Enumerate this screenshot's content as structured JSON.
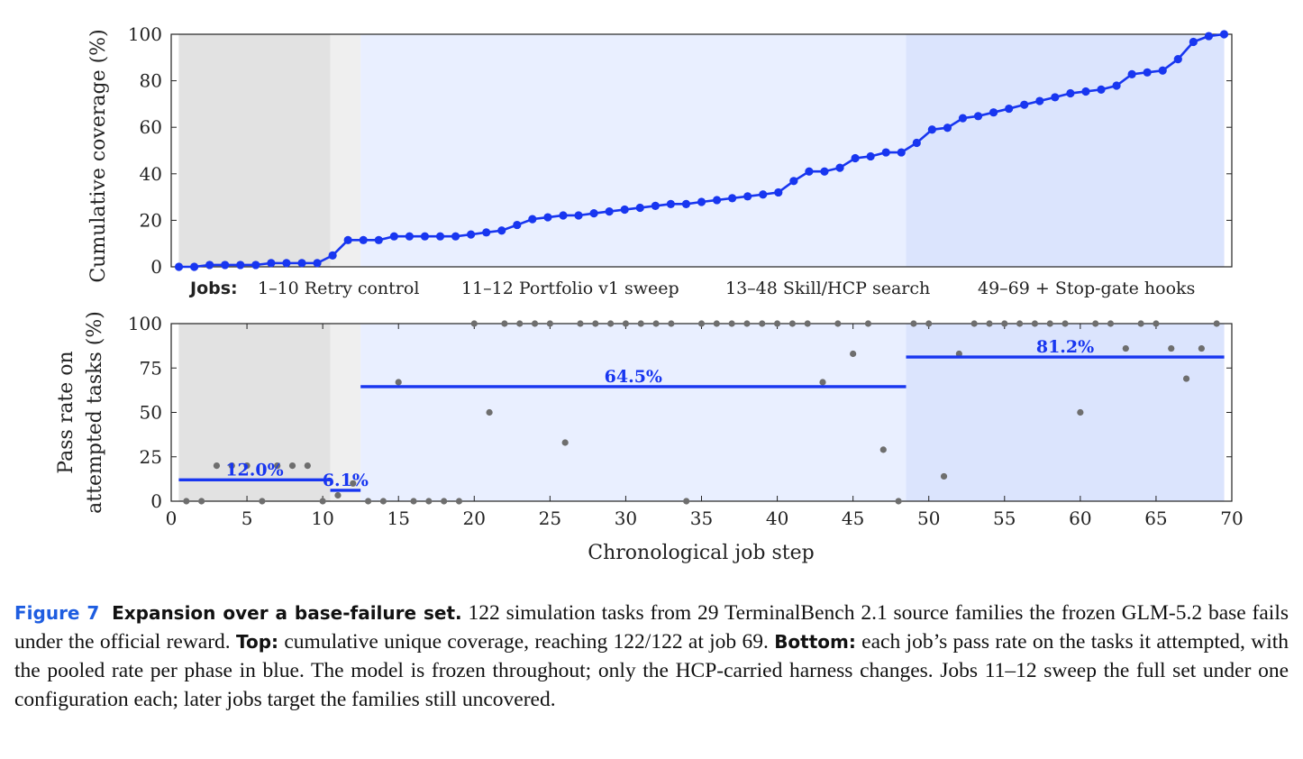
{
  "colors": {
    "line": "#1836f0",
    "scatter": "#6e6e6e",
    "phase_bg": [
      "#e2e2e2",
      "#efefef",
      "#e9efff",
      "#dbe4fd"
    ],
    "axis": "#222222"
  },
  "jobs_label": "Jobs:",
  "phases": [
    {
      "label": "1–10 Retry control",
      "start": 0.5,
      "end": 10.5
    },
    {
      "label": "11–12 Portfolio v1 sweep",
      "start": 10.5,
      "end": 12.5
    },
    {
      "label": "13–48 Skill/HCP search",
      "start": 12.5,
      "end": 48.5
    },
    {
      "label": "49–69 + Stop-gate hooks",
      "start": 48.5,
      "end": 69.5
    }
  ],
  "chart_data": [
    {
      "type": "line",
      "ylabel": "Cumulative coverage (%)",
      "xlim": [
        0.5,
        69.5
      ],
      "ylim": [
        0,
        100
      ],
      "yticks": [
        0,
        20,
        40,
        60,
        80,
        100
      ],
      "x": [
        1,
        2,
        3,
        4,
        5,
        6,
        7,
        8,
        9,
        10,
        11,
        12,
        13,
        14,
        15,
        16,
        17,
        18,
        19,
        20,
        21,
        22,
        23,
        24,
        25,
        26,
        27,
        28,
        29,
        30,
        31,
        32,
        33,
        34,
        35,
        36,
        37,
        38,
        39,
        40,
        41,
        42,
        43,
        44,
        45,
        46,
        47,
        48,
        49,
        50,
        51,
        52,
        53,
        54,
        55,
        56,
        57,
        58,
        59,
        60,
        61,
        62,
        63,
        64,
        65,
        66,
        67,
        68,
        69
      ],
      "series": [
        {
          "values": [
            0,
            0,
            0.8,
            0.8,
            0.8,
            0.8,
            1.6,
            1.6,
            1.6,
            1.6,
            4.9,
            11.5,
            11.5,
            11.5,
            13.1,
            13.1,
            13.1,
            13.1,
            13.1,
            13.9,
            14.8,
            15.6,
            18.0,
            20.5,
            21.3,
            22.1,
            22.1,
            23.0,
            23.8,
            24.6,
            25.4,
            26.2,
            27.0,
            27.0,
            27.9,
            28.7,
            29.5,
            30.3,
            31.1,
            32.0,
            36.9,
            41.0,
            41.0,
            42.6,
            46.7,
            47.5,
            49.2,
            49.2,
            53.3,
            59.0,
            59.8,
            63.9,
            64.8,
            66.4,
            68.0,
            69.7,
            71.3,
            72.9,
            74.6,
            75.4,
            76.2,
            77.9,
            82.8,
            83.6,
            84.4,
            89.3,
            96.7,
            99.2,
            100
          ]
        }
      ]
    },
    {
      "type": "scatter",
      "ylabel": "Pass rate on attempted tasks (%)",
      "xlabel": "Chronological job step",
      "xlim": [
        0,
        70
      ],
      "ylim": [
        0,
        100
      ],
      "xticks": [
        0,
        5,
        10,
        15,
        20,
        25,
        30,
        35,
        40,
        45,
        50,
        55,
        60,
        65,
        70
      ],
      "yticks": [
        0,
        25,
        50,
        75,
        100
      ],
      "x": [
        1,
        2,
        3,
        4,
        5,
        6,
        7,
        8,
        9,
        10,
        11,
        12,
        13,
        14,
        15,
        16,
        17,
        18,
        19,
        20,
        21,
        22,
        23,
        24,
        25,
        26,
        27,
        28,
        29,
        30,
        31,
        32,
        33,
        34,
        35,
        36,
        37,
        38,
        39,
        40,
        41,
        42,
        43,
        44,
        45,
        46,
        47,
        48,
        49,
        50,
        51,
        52,
        53,
        54,
        55,
        56,
        57,
        58,
        59,
        60,
        61,
        62,
        63,
        64,
        65,
        66,
        67,
        68,
        69
      ],
      "values": [
        0,
        0,
        20,
        20,
        20,
        0,
        20,
        20,
        20,
        0,
        3.3,
        10,
        0,
        0,
        67,
        0,
        0,
        0,
        0,
        100,
        50,
        100,
        100,
        100,
        100,
        33,
        100,
        100,
        100,
        100,
        100,
        100,
        100,
        0,
        100,
        100,
        100,
        100,
        100,
        100,
        100,
        100,
        67,
        100,
        83,
        100,
        29,
        0,
        100,
        100,
        14,
        83,
        100,
        100,
        100,
        100,
        100,
        100,
        100,
        50,
        100,
        100,
        86,
        100,
        100,
        86,
        69,
        86,
        100
      ],
      "pooled": [
        {
          "label": "12.0%",
          "value": 12.0,
          "start": 0.5,
          "end": 10.5
        },
        {
          "label": "6.1%",
          "value": 6.1,
          "start": 10.5,
          "end": 12.5
        },
        {
          "label": "64.5%",
          "value": 64.5,
          "start": 12.5,
          "end": 48.5
        },
        {
          "label": "81.2%",
          "value": 81.2,
          "start": 48.5,
          "end": 69.5
        }
      ]
    }
  ],
  "caption": {
    "label": "Figure 7",
    "title": "Expansion over a base-failure set.",
    "text1": " 122 simulation tasks from 29 TerminalBench 2.1 source families the frozen GLM-5.2 base fails under the official reward. ",
    "top_label": "Top:",
    "text2": " cumulative unique coverage, reaching 122/122 at job 69. ",
    "bottom_label": "Bottom:",
    "text3": " each job’s pass rate on the tasks it attempted, with the pooled rate per phase in blue. The model is frozen throughout; only the HCP-carried harness changes. Jobs 11–12 sweep the full set under one configuration each; later jobs target the families still uncovered."
  }
}
